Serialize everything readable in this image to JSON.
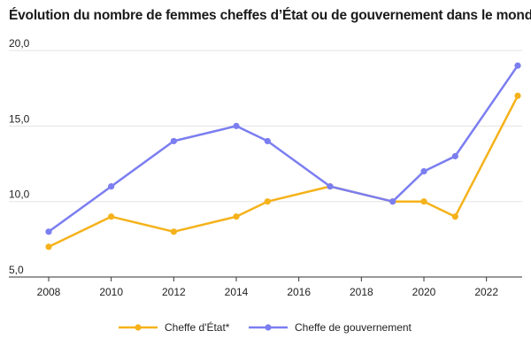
{
  "chart_data": {
    "type": "line",
    "title": "Évolution du nombre de femmes cheffes d’État ou de gouvernement dans le monde",
    "xlabel": "",
    "ylabel": "",
    "x_ticks": [
      2008,
      2010,
      2012,
      2014,
      2016,
      2018,
      2020,
      2022
    ],
    "x_range": [
      2008,
      2023
    ],
    "y_ticks": [
      "5,0",
      "10,0",
      "15,0",
      "20,0"
    ],
    "y_tick_values": [
      5,
      10,
      15,
      20
    ],
    "ylim": [
      5,
      21
    ],
    "grid": "horizontal",
    "legend_position": "bottom",
    "series": [
      {
        "name": "Cheffe d'État*",
        "color": "#f5b21a",
        "x": [
          2008,
          2010,
          2012,
          2014,
          2015,
          2017,
          2019,
          2020,
          2021,
          2023
        ],
        "values": [
          7,
          9,
          8,
          9,
          10,
          11,
          10,
          10,
          9,
          17
        ]
      },
      {
        "name": "Cheffe de gouvernement",
        "color": "#7b7ef0",
        "x": [
          2008,
          2010,
          2012,
          2014,
          2015,
          2017,
          2019,
          2020,
          2021,
          2023
        ],
        "values": [
          8,
          11,
          14,
          15,
          14,
          11,
          10,
          12,
          13,
          19
        ]
      }
    ]
  }
}
